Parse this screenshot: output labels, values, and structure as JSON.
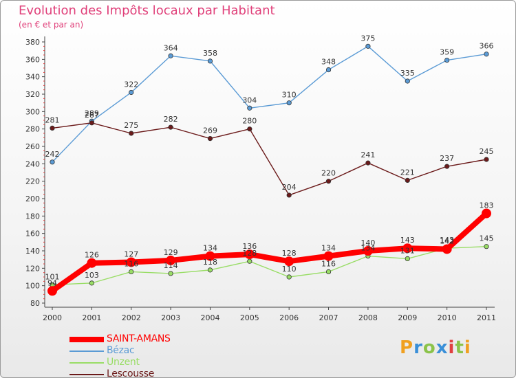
{
  "chart_data": {
    "type": "line",
    "title": "Evolution des Impôts locaux par Habitant",
    "subtitle": "(en € et par an)",
    "x": [
      "2000",
      "2001",
      "2002",
      "2003",
      "2004",
      "2005",
      "2006",
      "2007",
      "2008",
      "2009",
      "2010",
      "2011"
    ],
    "ylim": [
      80,
      380
    ],
    "yticks": [
      80,
      100,
      120,
      140,
      160,
      180,
      200,
      220,
      240,
      260,
      280,
      300,
      320,
      340,
      360,
      380
    ],
    "grid": false,
    "legend_position": "bottom-left",
    "series": [
      {
        "name": "SAINT-AMANS",
        "color": "#ff0000",
        "values": [
          94,
          126,
          127,
          129,
          134,
          136,
          128,
          134,
          140,
          143,
          142,
          183
        ]
      },
      {
        "name": "Bézac",
        "color": "#5b9bd5",
        "values": [
          242,
          289,
          322,
          364,
          358,
          304,
          310,
          348,
          375,
          335,
          359,
          366
        ]
      },
      {
        "name": "Unzent",
        "color": "#99dd66",
        "values": [
          101,
          103,
          116,
          114,
          118,
          128,
          110,
          116,
          134,
          131,
          143,
          145
        ]
      },
      {
        "name": "Lescousse",
        "color": "#6b1a1a",
        "values": [
          281,
          287,
          275,
          282,
          269,
          280,
          204,
          220,
          241,
          221,
          237,
          245
        ]
      }
    ]
  },
  "logo": {
    "letters": [
      "P",
      "r",
      "o",
      "x",
      "i",
      "t",
      "i"
    ],
    "colors": [
      "#f0a020",
      "#3a8fd8",
      "#8bc34a",
      "#3a8fd8",
      "#e04040",
      "#8bc34a",
      "#f0a020"
    ]
  }
}
